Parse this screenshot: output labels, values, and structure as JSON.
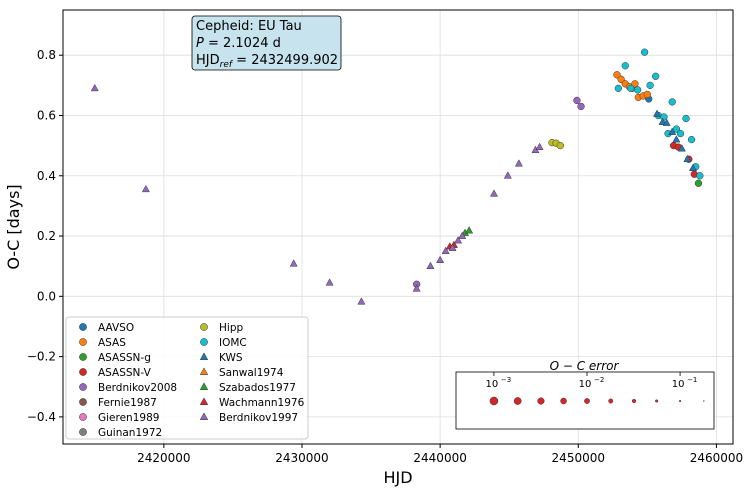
{
  "chart_data": {
    "type": "scatter",
    "title": "",
    "xlabel": "HJD",
    "ylabel": "O-C [days]",
    "xlim": [
      2412700,
      2461200
    ],
    "ylim": [
      -0.49,
      0.95
    ],
    "xticks": [
      2420000,
      2430000,
      2440000,
      2450000,
      2460000
    ],
    "xtick_labels": [
      "2420000",
      "2430000",
      "2440000",
      "2450000",
      "2460000"
    ],
    "yticks": [
      -0.4,
      -0.2,
      0.0,
      0.2,
      0.4,
      0.6,
      0.8
    ],
    "ytick_labels": [
      "−0.4",
      "−0.2",
      "0.0",
      "0.2",
      "0.4",
      "0.6",
      "0.8"
    ],
    "grid": true,
    "legend_position": "lower-left",
    "infobox": {
      "line1": "Cepheid: EU Tau",
      "line2_var": "P",
      "line2_rest": " = 2.1024 d",
      "line3_base": "HJD",
      "line3_sub": "ref",
      "line3_rest": " = 2432499.902"
    },
    "error_legend": {
      "title": "O − C error",
      "tick_labels": [
        {
          "base": "10",
          "exp": "−3",
          "at": 0.001
        },
        {
          "base": "10",
          "exp": "−2",
          "at": 0.01
        },
        {
          "base": "10",
          "exp": "−1",
          "at": 0.1
        }
      ],
      "samples": [
        {
          "err": 0.001,
          "size": 4.0
        },
        {
          "err": 0.0018,
          "size": 3.6
        },
        {
          "err": 0.0032,
          "size": 3.3
        },
        {
          "err": 0.0056,
          "size": 3.0
        },
        {
          "err": 0.01,
          "size": 2.6
        },
        {
          "err": 0.018,
          "size": 2.2
        },
        {
          "err": 0.032,
          "size": 1.8
        },
        {
          "err": 0.056,
          "size": 1.3
        },
        {
          "err": 0.1,
          "size": 0.8
        },
        {
          "err": 0.18,
          "size": 0.5
        }
      ]
    },
    "series": [
      {
        "name": "AAVSO",
        "marker": "circle",
        "color": "#1f77b4",
        "points": [
          [
            2455100,
            0.655
          ]
        ]
      },
      {
        "name": "ASAS",
        "marker": "circle",
        "color": "#ff7f0e",
        "points": [
          [
            2452800,
            0.735
          ],
          [
            2453100,
            0.72
          ],
          [
            2453400,
            0.705
          ],
          [
            2453700,
            0.695
          ],
          [
            2453900,
            0.69
          ],
          [
            2454100,
            0.705
          ],
          [
            2454350,
            0.66
          ],
          [
            2454700,
            0.665
          ],
          [
            2455000,
            0.67
          ]
        ]
      },
      {
        "name": "ASASSN-g",
        "marker": "circle",
        "color": "#2ca02c",
        "points": [
          [
            2458700,
            0.375
          ]
        ]
      },
      {
        "name": "ASASSN-V",
        "marker": "circle",
        "color": "#d62728",
        "points": [
          [
            2456900,
            0.5
          ],
          [
            2457250,
            0.495
          ],
          [
            2458000,
            0.455
          ],
          [
            2458400,
            0.405
          ]
        ]
      },
      {
        "name": "Berdnikov2008",
        "marker": "circle",
        "color": "#9467bd",
        "points": [
          [
            2438300,
            0.04
          ],
          [
            2449900,
            0.65
          ],
          [
            2450200,
            0.63
          ]
        ]
      },
      {
        "name": "Fernie1987",
        "marker": "circle",
        "color": "#8c564b",
        "points": []
      },
      {
        "name": "Gieren1989",
        "marker": "circle",
        "color": "#e377c2",
        "points": []
      },
      {
        "name": "Guinan1972",
        "marker": "circle",
        "color": "#7f7f7f",
        "points": []
      },
      {
        "name": "Hipp",
        "marker": "circle",
        "color": "#bcbd22",
        "points": [
          [
            2448100,
            0.51
          ],
          [
            2448400,
            0.508
          ],
          [
            2448700,
            0.5
          ]
        ]
      },
      {
        "name": "IOMC",
        "marker": "circle",
        "color": "#17becf",
        "points": [
          [
            2452900,
            0.69
          ],
          [
            2453400,
            0.765
          ],
          [
            2453800,
            0.69
          ],
          [
            2454300,
            0.685
          ],
          [
            2454800,
            0.81
          ],
          [
            2455200,
            0.7
          ],
          [
            2455600,
            0.73
          ],
          [
            2455800,
            0.6
          ],
          [
            2456200,
            0.595
          ],
          [
            2456500,
            0.54
          ],
          [
            2456800,
            0.645
          ],
          [
            2457100,
            0.555
          ],
          [
            2457400,
            0.54
          ],
          [
            2457800,
            0.59
          ],
          [
            2458200,
            0.52
          ],
          [
            2458500,
            0.43
          ],
          [
            2458800,
            0.4
          ]
        ]
      },
      {
        "name": "KWS",
        "marker": "triangle",
        "color": "#1f77b4",
        "points": [
          [
            2455700,
            0.605
          ],
          [
            2456100,
            0.578
          ],
          [
            2456400,
            0.575
          ],
          [
            2456800,
            0.545
          ],
          [
            2457100,
            0.52
          ],
          [
            2457500,
            0.49
          ],
          [
            2457900,
            0.455
          ],
          [
            2458300,
            0.425
          ]
        ]
      },
      {
        "name": "Sanwal1974",
        "marker": "triangle",
        "color": "#ff7f0e",
        "points": []
      },
      {
        "name": "Szabados1977",
        "marker": "triangle",
        "color": "#2ca02c",
        "points": [
          [
            2441800,
            0.21
          ],
          [
            2442100,
            0.218
          ]
        ]
      },
      {
        "name": "Wachmann1976",
        "marker": "triangle",
        "color": "#d62728",
        "points": [
          [
            2440700,
            0.165
          ],
          [
            2441000,
            0.17
          ]
        ]
      },
      {
        "name": "Berdnikov1997",
        "marker": "triangle",
        "color": "#9467bd",
        "points": [
          [
            2415000,
            0.69
          ],
          [
            2418700,
            0.355
          ],
          [
            2429400,
            0.108
          ],
          [
            2432000,
            0.045
          ],
          [
            2434300,
            -0.018
          ],
          [
            2438300,
            0.025
          ],
          [
            2439300,
            0.1
          ],
          [
            2440000,
            0.12
          ],
          [
            2440400,
            0.15
          ],
          [
            2440900,
            0.16
          ],
          [
            2441300,
            0.185
          ],
          [
            2441600,
            0.2
          ],
          [
            2443900,
            0.34
          ],
          [
            2444900,
            0.4
          ],
          [
            2445700,
            0.44
          ],
          [
            2446900,
            0.485
          ],
          [
            2447200,
            0.495
          ]
        ]
      }
    ]
  }
}
